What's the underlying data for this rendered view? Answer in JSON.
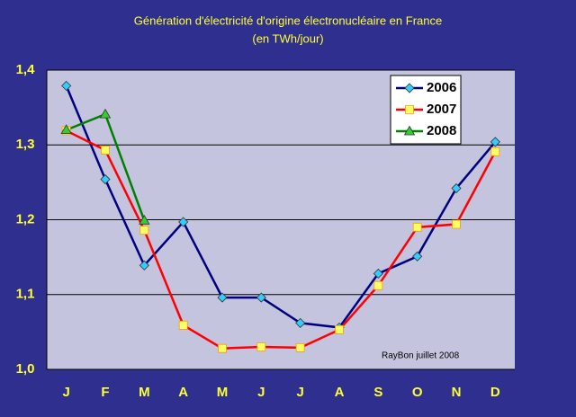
{
  "chart_data": {
    "type": "line",
    "title": "Génération d'électricité d'origine électronucléaire en France",
    "subtitle": "(en TWh/jour)",
    "annotation": "RayBon juillet 2008",
    "categories": [
      "J",
      "F",
      "M",
      "A",
      "M",
      "J",
      "J",
      "A",
      "S",
      "O",
      "N",
      "D"
    ],
    "series": [
      {
        "name": "2006",
        "color": "#000080",
        "marker_color": "#33ccff",
        "marker": "diamond",
        "values": [
          1.379,
          1.254,
          1.139,
          1.197,
          1.096,
          1.096,
          1.062,
          1.056,
          1.128,
          1.151,
          1.242,
          1.304
        ]
      },
      {
        "name": "2007",
        "color": "#ff0000",
        "marker_color": "#ffff66",
        "marker": "square",
        "values": [
          1.319,
          1.293,
          1.186,
          1.059,
          1.028,
          1.03,
          1.029,
          1.053,
          1.112,
          1.19,
          1.194,
          1.291
        ]
      },
      {
        "name": "2008",
        "color": "#008000",
        "marker_color": "#33cc33",
        "marker": "triangle",
        "values": [
          1.32,
          1.341,
          1.199,
          null,
          null,
          null,
          null,
          null,
          null,
          null,
          null,
          null
        ]
      }
    ],
    "ylim": [
      1.0,
      1.4
    ],
    "yticks": [
      {
        "value": 1.0,
        "label": "1,0"
      },
      {
        "value": 1.1,
        "label": "1,1"
      },
      {
        "value": 1.2,
        "label": "1,2"
      },
      {
        "value": 1.3,
        "label": "1,3"
      },
      {
        "value": 1.4,
        "label": "1,4"
      }
    ],
    "grid": true,
    "legend": "top-right"
  }
}
